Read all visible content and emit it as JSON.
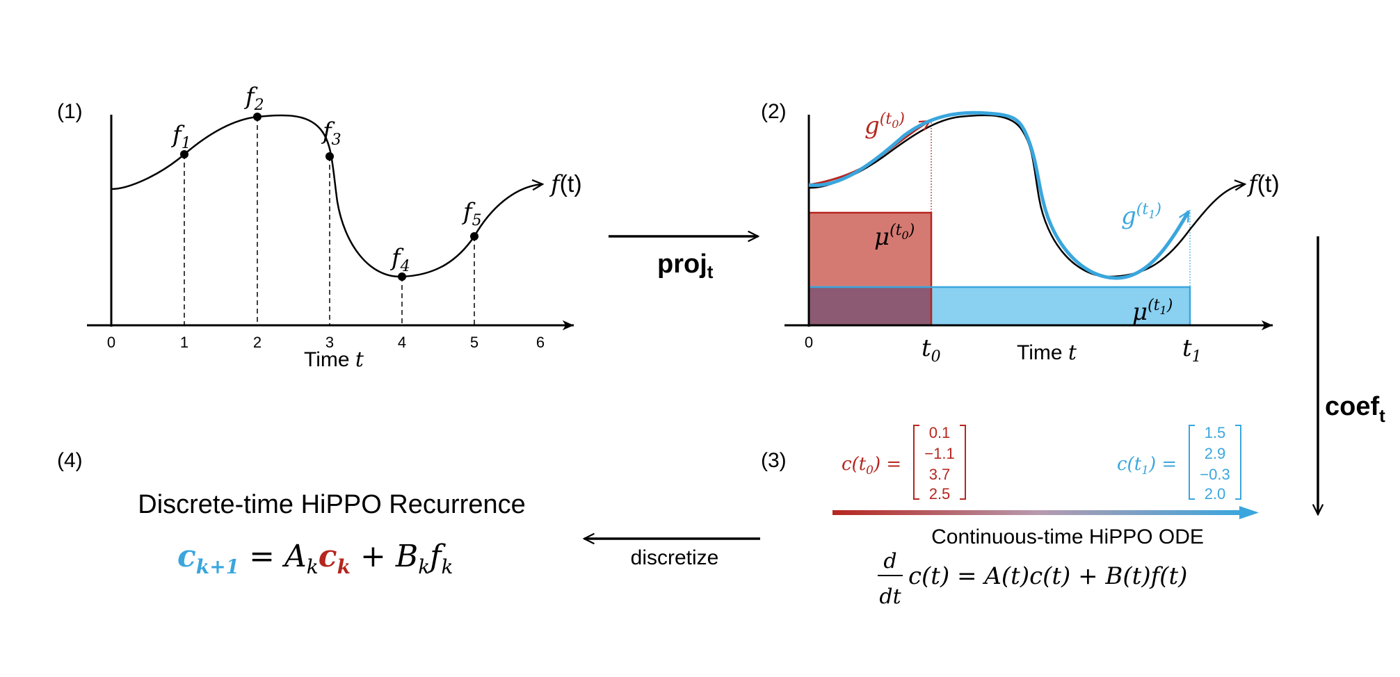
{
  "colors": {
    "red": "#b5261e",
    "blue": "#3aa6dd",
    "black": "#000000",
    "red_fill": "#d06b63",
    "blue_fill": "#7ccbf0",
    "overlap_fill": "#8c5a72"
  },
  "panel1": {
    "label": "(1)",
    "points": [
      {
        "name": "f",
        "sub": "1"
      },
      {
        "name": "f",
        "sub": "2"
      },
      {
        "name": "f",
        "sub": "3"
      },
      {
        "name": "f",
        "sub": "4"
      },
      {
        "name": "f",
        "sub": "5"
      }
    ],
    "ticks": [
      "0",
      "1",
      "2",
      "3",
      "4",
      "5",
      "6"
    ],
    "curve_label": "f",
    "curve_label_arg": "(t)",
    "xlabel_text": "Time ",
    "xlabel_var": "t"
  },
  "arrow_proj": {
    "main": "proj",
    "sub": "t"
  },
  "panel2": {
    "label": "(2)",
    "g0": {
      "name": "g",
      "sup": "(t",
      "sub": "0",
      "close": ")"
    },
    "g1": {
      "name": "g",
      "sup": "(t",
      "sub": "1",
      "close": ")"
    },
    "mu0": {
      "name": "μ",
      "sup": "(t",
      "sub": "0",
      "close": ")"
    },
    "mu1": {
      "name": "μ",
      "sup": "(t",
      "sub": "1",
      "close": ")"
    },
    "tick0": "0",
    "t0": {
      "name": "t",
      "sub": "0"
    },
    "t1": {
      "name": "t",
      "sub": "1"
    },
    "curve_label": "f",
    "curve_label_arg": "(t)",
    "xlabel_text": "Time ",
    "xlabel_var": "t"
  },
  "arrow_coef": {
    "main": "coef",
    "sub": "t"
  },
  "panel3": {
    "label": "(3)",
    "c0_lhs": {
      "name": "c(t",
      "sub": "0",
      "close": ") ="
    },
    "c0_values": [
      "0.1",
      "−1.1",
      "3.7",
      "2.5"
    ],
    "c1_lhs": {
      "name": "c(t",
      "sub": "1",
      "close": ") ="
    },
    "c1_values": [
      "1.5",
      "2.9",
      "−0.3",
      "2.0"
    ],
    "title": "Continuous-time HiPPO ODE",
    "eq_frac_num": "d",
    "eq_frac_den": "dt",
    "eq_rest": "c(t) = A(t)c(t) + B(t)f(t)"
  },
  "arrow_discretize": {
    "label": "discretize"
  },
  "panel4": {
    "label": "(4)",
    "title": "Discrete-time HiPPO Recurrence",
    "lhs": {
      "name": "c",
      "sub": "k+1"
    },
    "eq": "=",
    "a": {
      "name": "A",
      "sub": "k"
    },
    "ck": {
      "name": "c",
      "sub": "k"
    },
    "plus": "+",
    "b": {
      "name": "B",
      "sub": "k"
    },
    "f": {
      "name": "f",
      "sub": "k"
    }
  }
}
